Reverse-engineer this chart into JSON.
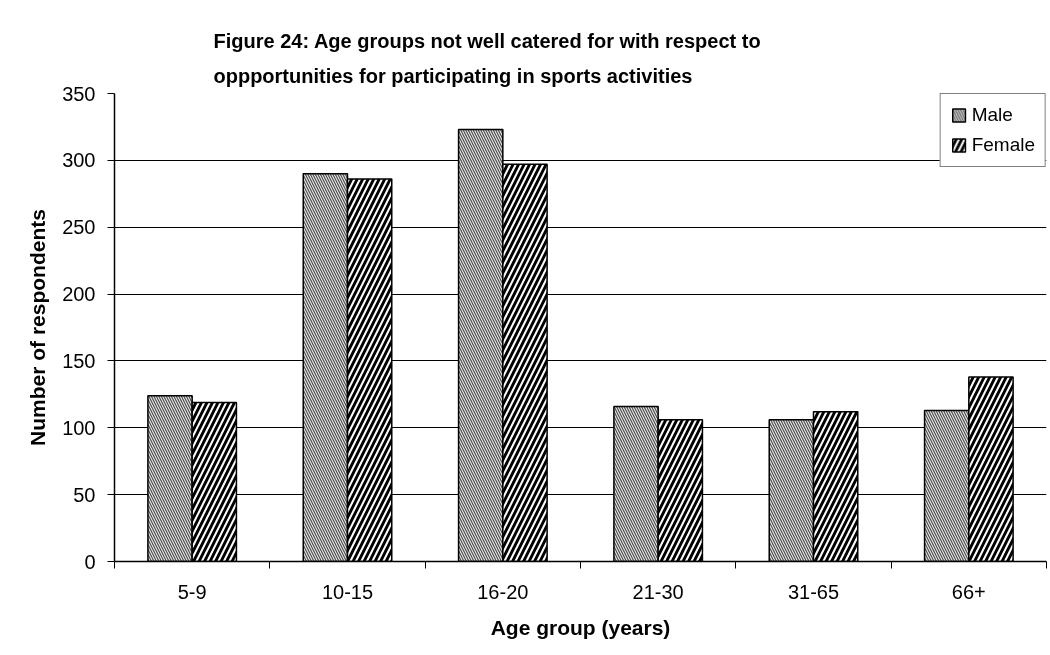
{
  "chart_data": {
    "type": "bar",
    "title": "Figure 24: Age groups not well catered for with respect to oppportunities for participating in sports activities",
    "xlabel": "Age group (years)",
    "ylabel": "Number of respondents",
    "categories": [
      "5-9",
      "10-15",
      "16-20",
      "21-30",
      "31-65",
      "66+"
    ],
    "series": [
      {
        "name": "Male",
        "color": "#555555",
        "values": [
          124,
          290,
          323,
          116,
          106,
          113
        ]
      },
      {
        "name": "Female",
        "color": "#000000",
        "values": [
          119,
          286,
          297,
          106,
          112,
          138
        ]
      }
    ],
    "ylim": [
      0,
      350
    ],
    "yticks": [
      0,
      50,
      100,
      150,
      200,
      250,
      300,
      350
    ],
    "grid": "y",
    "legend": "top right"
  }
}
